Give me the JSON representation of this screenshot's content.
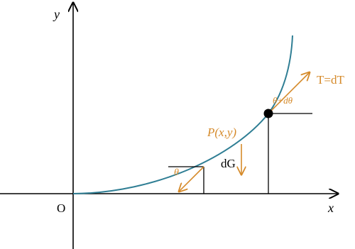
{
  "labels": {
    "y_axis": "y",
    "x_axis": "x",
    "origin": "O",
    "tension": "T=dT",
    "angle_top": "θ+dθ",
    "point": "P(x,y)",
    "weight": "dG",
    "angle_bottom": "θ"
  }
}
